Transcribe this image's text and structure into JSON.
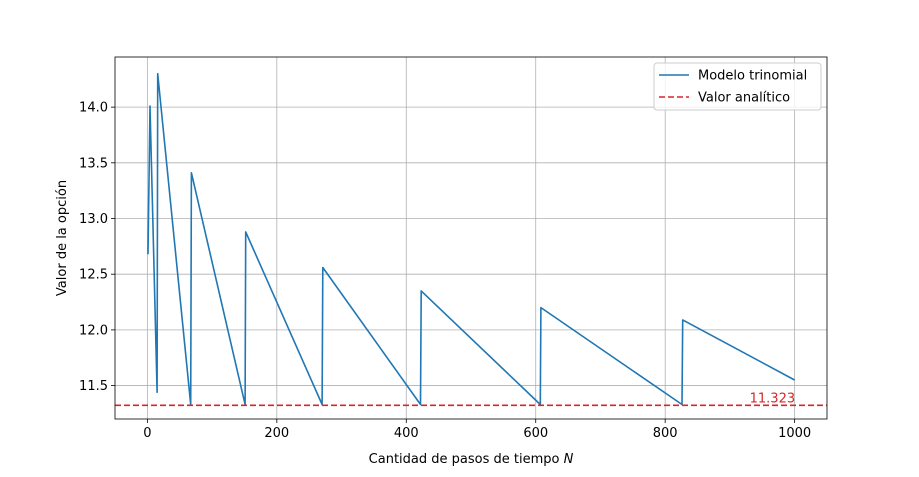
{
  "chart_data": {
    "type": "line",
    "title": "",
    "xlabel": "Cantidad de pasos de tiempo ",
    "xlabel_var": "N",
    "ylabel": "Valor de la opción",
    "xlim": [
      -50,
      1050
    ],
    "ylim": [
      11.2,
      14.45
    ],
    "xticks": [
      0,
      200,
      400,
      600,
      800,
      1000
    ],
    "xtick_labels": [
      "0",
      "200",
      "400",
      "600",
      "800",
      "1000"
    ],
    "yticks": [
      11.5,
      12.0,
      12.5,
      13.0,
      13.5,
      14.0
    ],
    "ytick_labels": [
      "11.5",
      "12.0",
      "12.5",
      "13.0",
      "13.5",
      "14.0"
    ],
    "grid": true,
    "legend_position": "top-right",
    "series": [
      {
        "name": "Modelo trinomial",
        "color": "#1f77b4",
        "style": "solid",
        "points": [
          [
            1,
            12.68
          ],
          [
            4,
            14.01
          ],
          [
            15,
            11.44
          ],
          [
            16,
            14.3
          ],
          [
            67,
            11.33
          ],
          [
            68,
            13.41
          ],
          [
            151,
            11.33
          ],
          [
            152,
            12.88
          ],
          [
            270,
            11.33
          ],
          [
            271,
            12.56
          ],
          [
            422,
            11.33
          ],
          [
            423,
            12.35
          ],
          [
            607,
            11.33
          ],
          [
            608,
            12.2
          ],
          [
            826,
            11.33
          ],
          [
            827,
            12.09
          ],
          [
            1000,
            11.55
          ]
        ]
      },
      {
        "name": "Valor analítico",
        "color": "#d62728",
        "style": "dashed",
        "y": 11.323
      }
    ],
    "annotation": {
      "text": "11.323",
      "color": "#d62728",
      "x": 1000,
      "y": 11.323
    }
  }
}
